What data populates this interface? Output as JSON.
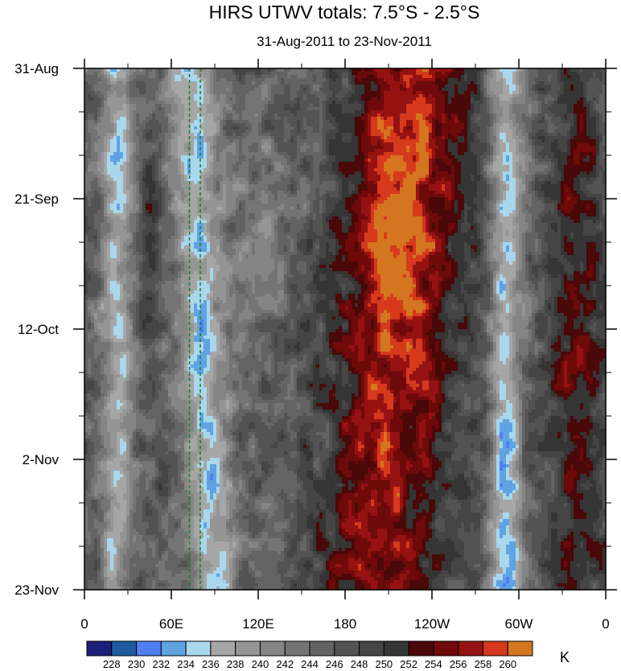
{
  "chart_data": {
    "type": "heatmap",
    "title": "HIRS UTWV totals: 7.5°S - 2.5°S",
    "subtitle": "31-Aug-2011 to 23-Nov-2011",
    "units": "K",
    "x_axis": {
      "tick_labels": [
        "0",
        "60E",
        "120E",
        "180",
        "120W",
        "60W",
        "0"
      ],
      "tick_values_deg_east": [
        0,
        60,
        120,
        180,
        240,
        300,
        360
      ],
      "range_deg_east": [
        0,
        360
      ]
    },
    "y_axis": {
      "tick_labels": [
        "31-Aug",
        "21-Sep",
        "12-Oct",
        "2-Nov",
        "23-Nov"
      ],
      "tick_values_day": [
        0,
        21,
        42,
        63,
        84
      ],
      "range_day": [
        0,
        84
      ],
      "direction": "time increases downward"
    },
    "color_levels": [
      228,
      230,
      232,
      234,
      236,
      238,
      240,
      242,
      244,
      246,
      248,
      250,
      252,
      254,
      256,
      258,
      260
    ],
    "colors": [
      "#1b1f7a",
      "#1f5aa0",
      "#4f7ef0",
      "#5fa3e3",
      "#a9d7ec",
      "#a6a6a6",
      "#959595",
      "#858585",
      "#747474",
      "#636363",
      "#535353",
      "#454545",
      "#353535",
      "#4a0808",
      "#6e0a0a",
      "#961212",
      "#d6391c",
      "#d4761f"
    ],
    "reference_lines": {
      "style": "green dashed",
      "longitudes_deg_east": [
        72.5,
        80
      ]
    },
    "field_description": {
      "moist_bands_deg_east": [
        [
          15,
          30
        ],
        [
          60,
          85
        ],
        [
          280,
          300
        ]
      ],
      "dry_bands_deg_east": [
        [
          180,
          260
        ]
      ]
    }
  }
}
